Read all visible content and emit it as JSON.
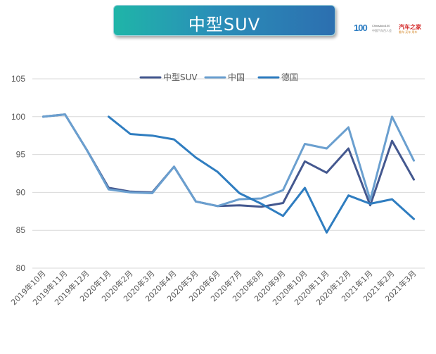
{
  "header": {
    "title": "中型SUV",
    "logo_number": "100",
    "logo_caption": "ChinaAuto100",
    "logo_sub": "中国汽车百人会",
    "logo_brand": "汽车之家",
    "logo_brand_sub": "看车·买车·用车"
  },
  "colors": {
    "banner_start": "#1fb5a8",
    "banner_end": "#2c6fb0",
    "gridline": "#d9d9d9"
  },
  "chart_data": {
    "type": "line",
    "title": "中型SUV",
    "xlabel": "",
    "ylabel": "",
    "ylim": [
      80,
      105
    ],
    "yticks": [
      80,
      85,
      90,
      95,
      100,
      105
    ],
    "grid": true,
    "legend_position": "top-center",
    "categories": [
      "2019年10月",
      "2019年11月",
      "2019年12月",
      "2020年1月",
      "2020年2月",
      "2020年3月",
      "2020年4月",
      "2020年5月",
      "2020年6月",
      "2020年7月",
      "2020年8月",
      "2020年9月",
      "2020年10月",
      "2020年11月",
      "2020年12月",
      "2021年1月",
      "2021年2月",
      "2021年3月"
    ],
    "series": [
      {
        "name": "中型SUV",
        "color": "#44588f",
        "values": [
          100.0,
          100.3,
          95.6,
          90.6,
          90.1,
          90.0,
          93.4,
          88.8,
          88.2,
          88.3,
          88.1,
          88.6,
          94.1,
          92.6,
          95.8,
          88.3,
          96.8,
          91.7
        ]
      },
      {
        "name": "中国",
        "color": "#6a9fcf",
        "values": [
          100.0,
          100.3,
          95.6,
          90.4,
          90.0,
          89.9,
          93.4,
          88.8,
          88.2,
          89.1,
          89.2,
          90.3,
          96.4,
          95.8,
          98.6,
          89.0,
          100.0,
          94.2
        ]
      },
      {
        "name": "德国",
        "color": "#2f7dc0",
        "values": [
          null,
          null,
          null,
          100.0,
          97.7,
          97.5,
          97.0,
          94.6,
          92.7,
          89.9,
          88.5,
          86.9,
          90.6,
          84.7,
          89.6,
          88.5,
          89.1,
          86.5
        ]
      }
    ]
  }
}
